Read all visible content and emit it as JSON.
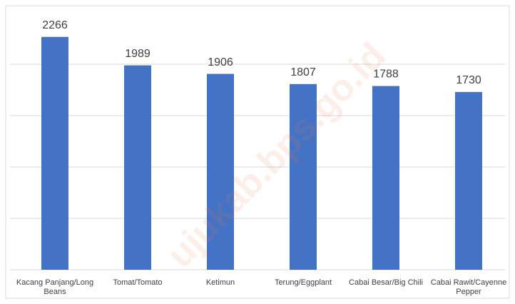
{
  "chart_data": {
    "type": "bar",
    "categories": [
      "Kacang Panjang/Long Beans",
      "Tomat/Tomato",
      "Ketimun",
      "Terung/Eggplant",
      "Cabai Besar/Big Chili",
      "Cabai Rawit/Cayenne Pepper"
    ],
    "values": [
      2266,
      1989,
      1906,
      1807,
      1788,
      1730
    ],
    "color": "#4472c4",
    "ylim": [
      0,
      2500
    ],
    "yticks": [
      0,
      500,
      1000,
      1500,
      2000
    ],
    "grid": true,
    "watermark": "ujukab.bps.go.id"
  }
}
